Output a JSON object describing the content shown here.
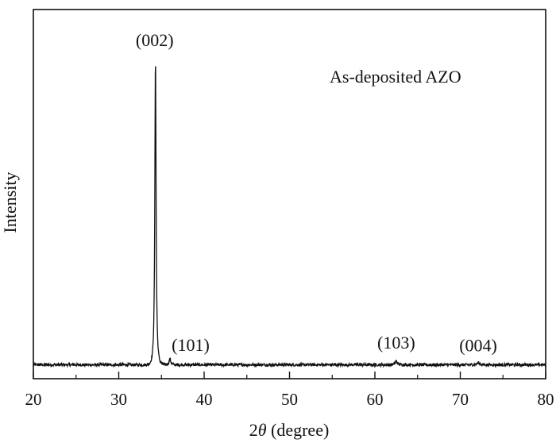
{
  "chart_data": {
    "type": "line",
    "title": "",
    "annotation": "As-deposited AZO",
    "xlabel_prefix": "2",
    "xlabel_symbol": "θ",
    "xlabel_suffix": " (degree)",
    "ylabel": "Intensity",
    "xlim": [
      20,
      80
    ],
    "ylim": [
      0,
      100
    ],
    "xticks": [
      20,
      30,
      40,
      50,
      60,
      70,
      80
    ],
    "yticks_shown": false,
    "grid": false,
    "legend": "none",
    "line_color": "#111111",
    "baseline": 4.3,
    "peaks": [
      {
        "label": "(002)",
        "x": 34.3,
        "y": 100
      },
      {
        "label": "(101)",
        "x": 36.0,
        "y": 6.2
      },
      {
        "label": "(103)",
        "x": 62.5,
        "y": 5.4
      },
      {
        "label": "(004)",
        "x": 72.1,
        "y": 5.0
      }
    ]
  }
}
